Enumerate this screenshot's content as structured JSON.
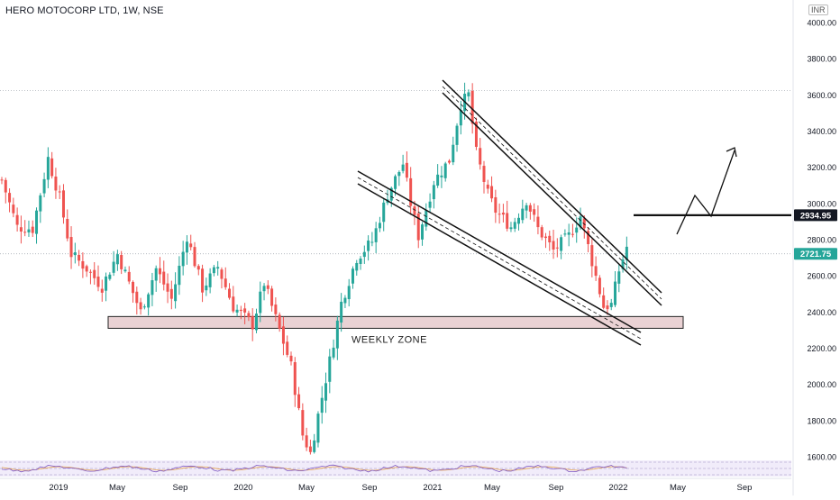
{
  "header": {
    "title": "HERO MOTOCORP LTD, 1W, NSE",
    "currency": "INR"
  },
  "chart_data": {
    "type": "candlestick",
    "title": "HERO MOTOCORP LTD, 1W, NSE",
    "ylim": [
      1580,
      4120
    ],
    "y_ticks": [
      1600,
      1800,
      2000,
      2200,
      2400,
      2600,
      2800,
      3000,
      3200,
      3400,
      3600,
      3800,
      4000
    ],
    "y_tick_labels": [
      "1600.00",
      "1800.00",
      "2000.00",
      "2200.00",
      "2400.00",
      "2600.00",
      "2800.00",
      "3000.00",
      "3200.00",
      "3400.00",
      "3600.00",
      "3800.00",
      "4000.00"
    ],
    "x_tick_labels": [
      "2019",
      "May",
      "Sep",
      "2020",
      "May",
      "Sep",
      "2021",
      "May",
      "Sep",
      "2022",
      "May",
      "Sep"
    ],
    "price_labels": [
      {
        "text": "2934.95",
        "value": 2934.95,
        "color": "#131722"
      },
      {
        "text": "2721.75",
        "value": 2721.75,
        "color": "#26a69a"
      }
    ],
    "reference_lines": [
      2721.75,
      3625
    ],
    "zone": {
      "label": "WEEKLY ZONE",
      "low": 2310,
      "high": 2375
    },
    "up_color": "#26a69a",
    "down_color": "#ef5350",
    "grid": false,
    "anchors": [
      {
        "t": 0,
        "p": 3130
      },
      {
        "t": 4,
        "p": 2870
      },
      {
        "t": 8,
        "p": 2860
      },
      {
        "t": 12,
        "p": 3250
      },
      {
        "t": 15,
        "p": 3030
      },
      {
        "t": 18,
        "p": 2720
      },
      {
        "t": 22,
        "p": 2640
      },
      {
        "t": 26,
        "p": 2540
      },
      {
        "t": 30,
        "p": 2720
      },
      {
        "t": 36,
        "p": 2400
      },
      {
        "t": 40,
        "p": 2640
      },
      {
        "t": 44,
        "p": 2470
      },
      {
        "t": 48,
        "p": 2820
      },
      {
        "t": 52,
        "p": 2530
      },
      {
        "t": 56,
        "p": 2650
      },
      {
        "t": 60,
        "p": 2430
      },
      {
        "t": 65,
        "p": 2330
      },
      {
        "t": 68,
        "p": 2560
      },
      {
        "t": 72,
        "p": 2300
      },
      {
        "t": 75,
        "p": 2100
      },
      {
        "t": 78,
        "p": 1720
      },
      {
        "t": 80,
        "p": 1620
      },
      {
        "t": 82,
        "p": 1830
      },
      {
        "t": 85,
        "p": 2130
      },
      {
        "t": 88,
        "p": 2450
      },
      {
        "t": 92,
        "p": 2700
      },
      {
        "t": 96,
        "p": 2790
      },
      {
        "t": 100,
        "p": 3050
      },
      {
        "t": 104,
        "p": 3220
      },
      {
        "t": 106,
        "p": 3000
      },
      {
        "t": 108,
        "p": 2820
      },
      {
        "t": 112,
        "p": 3120
      },
      {
        "t": 116,
        "p": 3240
      },
      {
        "t": 119,
        "p": 3550
      },
      {
        "t": 121,
        "p": 3600
      },
      {
        "t": 123,
        "p": 3280
      },
      {
        "t": 126,
        "p": 3050
      },
      {
        "t": 128,
        "p": 2960
      },
      {
        "t": 132,
        "p": 2870
      },
      {
        "t": 136,
        "p": 3020
      },
      {
        "t": 139,
        "p": 2860
      },
      {
        "t": 143,
        "p": 2740
      },
      {
        "t": 147,
        "p": 2820
      },
      {
        "t": 150,
        "p": 2930
      },
      {
        "t": 153,
        "p": 2680
      },
      {
        "t": 156,
        "p": 2430
      },
      {
        "t": 158,
        "p": 2440
      },
      {
        "t": 160,
        "p": 2630
      },
      {
        "t": 162,
        "p": 2760
      }
    ]
  }
}
